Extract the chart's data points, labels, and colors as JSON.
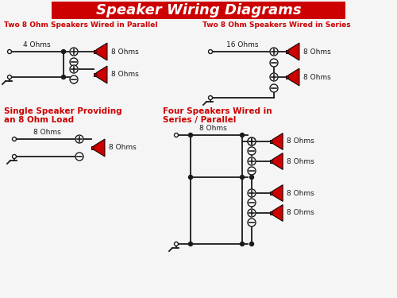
{
  "title": "Speaker Wiring Diagrams",
  "title_bg": "#cc0000",
  "title_fg": "#ffffff",
  "bg_color": "#f5f5f5",
  "red_color": "#cc0000",
  "black_color": "#1a1a1a",
  "sections": {
    "parallel": {
      "label": "Two 8 Ohm Speakers Wired in Parallel",
      "ohms_label": "4 Ohms",
      "speaker1_label": "8 Ohms",
      "speaker2_label": "8 Ohms"
    },
    "series": {
      "label": "Two 8 Ohm Speakers Wired in Series",
      "ohms_label": "16 Ohms",
      "speaker1_label": "8 Ohms",
      "speaker2_label": "8 Ohms"
    },
    "single": {
      "label1": "Single Speaker Providing",
      "label2": "an 8 Ohm Load",
      "ohms_label": "8 Ohms",
      "speaker_label": "8 Ohms"
    },
    "four": {
      "label1": "Four Speakers Wired in",
      "label2": "Series / Parallel",
      "ohms_label": "8 Ohms",
      "speaker_label": "8 Ohms"
    }
  }
}
